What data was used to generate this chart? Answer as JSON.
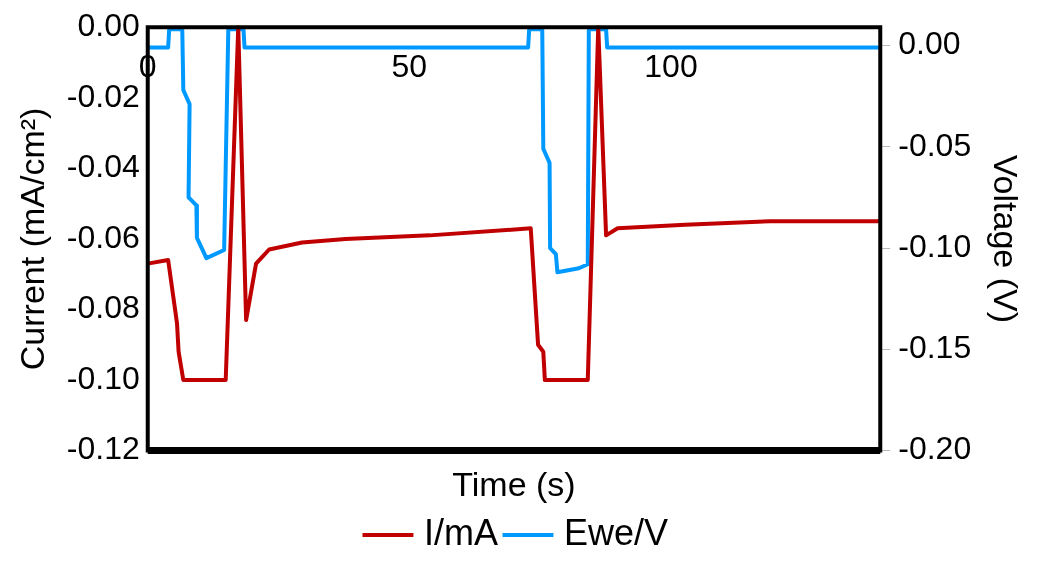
{
  "chart_data": {
    "type": "line",
    "xlabel": "Time (s)",
    "ylabel": "Current (mA/cm²)",
    "y2label": "Voltage (V)",
    "xlim": [
      0,
      140
    ],
    "xticks": [
      0,
      50,
      100
    ],
    "ylim": [
      -0.12,
      0
    ],
    "yticks": [
      {
        "value": 0,
        "label": "0.00"
      },
      {
        "value": -0.02,
        "label": "-0.02"
      },
      {
        "value": -0.04,
        "label": "-0.04"
      },
      {
        "value": -0.06,
        "label": "-0.06"
      },
      {
        "value": -0.08,
        "label": "-0.08"
      },
      {
        "value": -0.1,
        "label": "-0.10"
      },
      {
        "value": -0.12,
        "label": "-0.12"
      }
    ],
    "y2lim": [
      -0.2,
      0.009
    ],
    "y2ticks": [
      {
        "value": 0,
        "label": "0.00"
      },
      {
        "value": -0.05,
        "label": "-0.05"
      },
      {
        "value": -0.1,
        "label": "-0.10"
      },
      {
        "value": -0.15,
        "label": "-0.15"
      },
      {
        "value": -0.2,
        "label": "-0.20"
      }
    ],
    "legend": "bottom",
    "marker": "none",
    "line_style": "solid",
    "series": [
      {
        "name": "I/mA",
        "color": "#c00000",
        "x": [
          0,
          3.9,
          5.6,
          5.9,
          6.8,
          7.1,
          14.9,
          17.3,
          18.8,
          20.7,
          23.2,
          29.5,
          37.8,
          53.9,
          73.2,
          74.6,
          75.6,
          75.9,
          84.1,
          86.1,
          87.6,
          89.8,
          102.7,
          119,
          139.8
        ],
        "values": [
          -0.067,
          -0.066,
          -0.084,
          -0.092,
          -0.1,
          -0.1,
          -0.1,
          0,
          -0.083,
          -0.067,
          -0.063,
          -0.061,
          -0.06,
          -0.059,
          -0.057,
          -0.09,
          -0.092,
          -0.1,
          -0.1,
          0,
          -0.059,
          -0.057,
          -0.056,
          -0.055,
          -0.055
        ]
      },
      {
        "name": "Ewe/V",
        "color": "#0099ff",
        "axis": "y2",
        "x": [
          0,
          3.9,
          4.1,
          6.6,
          6.8,
          8.0,
          7.8,
          9.3,
          9.4,
          10.5,
          11.2,
          14.6,
          15.4,
          18.3,
          18.5,
          72.7,
          72.9,
          75.4,
          75.6,
          76.8,
          76.9,
          78.0,
          78.3,
          82.4,
          84.1,
          84.3,
          87.6,
          87.8,
          140
        ],
        "values": [
          -0.001,
          -0.001,
          0.008,
          0.008,
          -0.022,
          -0.029,
          -0.075,
          -0.079,
          -0.095,
          -0.101,
          -0.105,
          -0.101,
          0.008,
          0.008,
          -0.001,
          -0.001,
          0.008,
          0.008,
          -0.051,
          -0.058,
          -0.1,
          -0.103,
          -0.112,
          -0.11,
          -0.108,
          0.008,
          0.008,
          -0.001,
          -0.001
        ]
      }
    ]
  }
}
